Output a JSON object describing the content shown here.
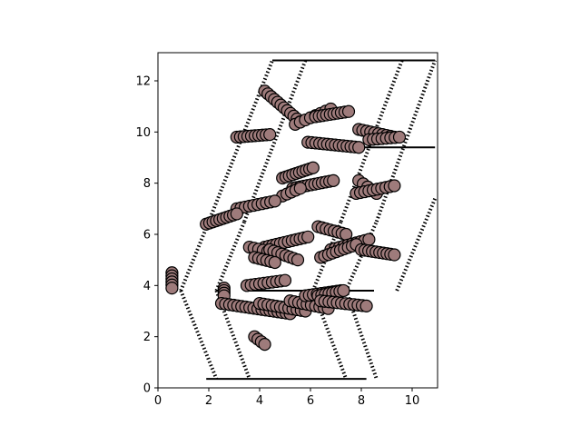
{
  "chart_data": {
    "type": "scatter",
    "title": "",
    "xlabel": "",
    "ylabel": "",
    "xlim": [
      0,
      11
    ],
    "ylim": [
      0,
      13.1
    ],
    "xticks": [
      0,
      2,
      4,
      6,
      8,
      10
    ],
    "yticks": [
      0,
      2,
      4,
      6,
      8,
      10,
      12
    ],
    "x_tick_labels": [
      "0",
      "2",
      "4",
      "6",
      "8",
      "10"
    ],
    "y_tick_labels": [
      "0",
      "2",
      "4",
      "6",
      "8",
      "10",
      "12"
    ],
    "grid": false,
    "legend": "none",
    "marker_color": "#9e7b7b",
    "marker_edge_color": "#000000",
    "cell_line_color": "#000000",
    "cell_edges": [
      {
        "style": "solid",
        "from": [
          3.5,
          3.8
        ],
        "to": [
          8.5,
          3.8
        ]
      },
      {
        "style": "solid",
        "from": [
          4.5,
          12.8
        ],
        "to": [
          10.9,
          12.8
        ]
      },
      {
        "style": "solid",
        "from": [
          7.7,
          9.4
        ],
        "to": [
          10.9,
          9.4
        ]
      },
      {
        "style": "solid",
        "from": [
          1.9,
          0.35
        ],
        "to": [
          8.2,
          0.35
        ]
      },
      {
        "style": "dashed",
        "from": [
          0.9,
          3.8
        ],
        "to": [
          2.3,
          0.35
        ]
      },
      {
        "style": "dashed",
        "from": [
          2.3,
          3.8
        ],
        "to": [
          3.6,
          0.35
        ]
      },
      {
        "style": "dashed",
        "from": [
          6.1,
          3.8
        ],
        "to": [
          7.4,
          0.35
        ]
      },
      {
        "style": "dashed",
        "from": [
          7.4,
          3.8
        ],
        "to": [
          8.6,
          0.35
        ]
      },
      {
        "style": "dashed",
        "from": [
          2.0,
          6.5
        ],
        "to": [
          4.5,
          12.8
        ]
      },
      {
        "style": "dashed",
        "from": [
          3.4,
          6.5
        ],
        "to": [
          5.8,
          12.8
        ]
      },
      {
        "style": "dashed",
        "from": [
          7.2,
          6.5
        ],
        "to": [
          9.6,
          12.8
        ]
      },
      {
        "style": "dashed",
        "from": [
          8.6,
          6.5
        ],
        "to": [
          10.9,
          12.8
        ]
      },
      {
        "style": "dashed",
        "from": [
          0.9,
          3.8
        ],
        "to": [
          2.0,
          6.5
        ]
      },
      {
        "style": "dashed",
        "from": [
          2.3,
          3.8
        ],
        "to": [
          3.4,
          6.5
        ]
      },
      {
        "style": "dashed",
        "from": [
          6.1,
          3.8
        ],
        "to": [
          7.2,
          6.5
        ]
      },
      {
        "style": "dashed",
        "from": [
          7.4,
          3.8
        ],
        "to": [
          8.6,
          6.5
        ]
      },
      {
        "style": "dashed",
        "from": [
          9.4,
          3.8
        ],
        "to": [
          10.9,
          7.4
        ]
      }
    ],
    "chains": [
      {
        "from": [
          4.2,
          11.6
        ],
        "to": [
          5.6,
          10.4
        ],
        "n": 12
      },
      {
        "from": [
          5.4,
          10.3
        ],
        "to": [
          6.8,
          10.9
        ],
        "n": 8
      },
      {
        "from": [
          6.2,
          10.6
        ],
        "to": [
          7.5,
          10.8
        ],
        "n": 10
      },
      {
        "from": [
          3.1,
          9.8
        ],
        "to": [
          4.4,
          9.9
        ],
        "n": 10
      },
      {
        "from": [
          5.9,
          9.6
        ],
        "to": [
          7.9,
          9.4
        ],
        "n": 14
      },
      {
        "from": [
          7.9,
          10.1
        ],
        "to": [
          9.3,
          9.8
        ],
        "n": 10
      },
      {
        "from": [
          8.3,
          9.7
        ],
        "to": [
          9.5,
          9.8
        ],
        "n": 8
      },
      {
        "from": [
          4.9,
          8.2
        ],
        "to": [
          6.1,
          8.6
        ],
        "n": 10
      },
      {
        "from": [
          5.3,
          7.8
        ],
        "to": [
          6.9,
          8.1
        ],
        "n": 12
      },
      {
        "from": [
          4.9,
          7.5
        ],
        "to": [
          5.6,
          7.8
        ],
        "n": 5
      },
      {
        "from": [
          7.9,
          8.1
        ],
        "to": [
          8.6,
          7.6
        ],
        "n": 5
      },
      {
        "from": [
          7.8,
          7.6
        ],
        "to": [
          9.3,
          7.9
        ],
        "n": 10
      },
      {
        "from": [
          3.1,
          7.0
        ],
        "to": [
          4.6,
          7.3
        ],
        "n": 10
      },
      {
        "from": [
          1.9,
          6.4
        ],
        "to": [
          3.1,
          6.8
        ],
        "n": 10
      },
      {
        "from": [
          6.3,
          6.3
        ],
        "to": [
          7.4,
          6.0
        ],
        "n": 8
      },
      {
        "from": [
          6.8,
          5.4
        ],
        "to": [
          8.3,
          5.8
        ],
        "n": 10
      },
      {
        "from": [
          6.4,
          5.1
        ],
        "to": [
          7.8,
          5.6
        ],
        "n": 10
      },
      {
        "from": [
          8.0,
          5.4
        ],
        "to": [
          9.3,
          5.2
        ],
        "n": 10
      },
      {
        "from": [
          4.2,
          5.5
        ],
        "to": [
          5.9,
          5.9
        ],
        "n": 12
      },
      {
        "from": [
          3.6,
          5.5
        ],
        "to": [
          4.5,
          5.3
        ],
        "n": 6
      },
      {
        "from": [
          4.4,
          5.4
        ],
        "to": [
          5.5,
          5.0
        ],
        "n": 8
      },
      {
        "from": [
          3.8,
          5.1
        ],
        "to": [
          4.6,
          4.9
        ],
        "n": 6
      },
      {
        "from": [
          3.5,
          4.0
        ],
        "to": [
          5.0,
          4.2
        ],
        "n": 10
      },
      {
        "from": [
          0.55,
          4.5
        ],
        "to": [
          0.55,
          3.9
        ],
        "n": 6
      },
      {
        "from": [
          2.6,
          3.9
        ],
        "to": [
          2.6,
          3.6
        ],
        "n": 4
      },
      {
        "from": [
          2.5,
          3.3
        ],
        "to": [
          5.2,
          2.9
        ],
        "n": 18
      },
      {
        "from": [
          4.0,
          3.3
        ],
        "to": [
          5.8,
          3.0
        ],
        "n": 12
      },
      {
        "from": [
          5.2,
          3.4
        ],
        "to": [
          6.7,
          3.1
        ],
        "n": 10
      },
      {
        "from": [
          5.8,
          3.6
        ],
        "to": [
          7.2,
          3.8
        ],
        "n": 10
      },
      {
        "from": [
          6.3,
          3.6
        ],
        "to": [
          7.3,
          3.8
        ],
        "n": 8
      },
      {
        "from": [
          6.4,
          3.4
        ],
        "to": [
          8.2,
          3.2
        ],
        "n": 12
      },
      {
        "from": [
          3.8,
          2.0
        ],
        "to": [
          4.2,
          1.7
        ],
        "n": 4
      }
    ]
  }
}
